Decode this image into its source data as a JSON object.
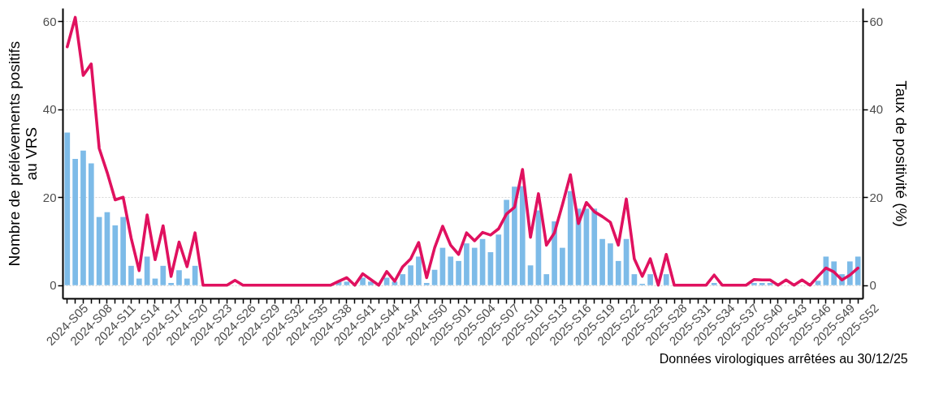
{
  "chart_data": {
    "type": "bar",
    "ylabel": "Nombre de prélévements positifs\nau VRS",
    "y2label": "Taux de positivité (%)",
    "annotations": [
      "Données virologiques arrêtées au 30/12/25"
    ],
    "categories": [
      "2024-S05",
      null,
      null,
      "2024-S08",
      null,
      null,
      "2024-S11",
      null,
      null,
      "2024-S14",
      null,
      null,
      "2024-S17",
      null,
      null,
      "2024-S20",
      null,
      null,
      "2024-S23",
      null,
      null,
      "2024-S26",
      null,
      null,
      "2024-S29",
      null,
      null,
      "2024-S32",
      null,
      null,
      "2024-S35",
      null,
      null,
      "2024-S38",
      null,
      null,
      "2024-S41",
      null,
      null,
      "2024-S44",
      null,
      null,
      "2024-S47",
      null,
      null,
      "2024-S50",
      null,
      null,
      "2025-S01",
      null,
      null,
      "2025-S04",
      null,
      null,
      "2025-S07",
      null,
      null,
      "2025-S10",
      null,
      null,
      "2025-S13",
      null,
      null,
      "2025-S16",
      null,
      null,
      "2025-S19",
      null,
      null,
      "2025-S22",
      null,
      null,
      "2025-S25",
      null,
      null,
      "2025-S28",
      null,
      null,
      "2025-S31",
      null,
      null,
      "2025-S34",
      null,
      null,
      "2025-S37",
      null,
      null,
      "2025-S40",
      null,
      null,
      "2025-S43",
      null,
      null,
      "2025-S46",
      null,
      null,
      "2025-S49",
      null,
      null,
      "2025-S52"
    ],
    "series": [
      {
        "color": "#7dbbe8",
        "values": [
          34.7,
          28.7,
          30.6,
          27.7,
          15.5,
          16.6,
          13.6,
          15.5,
          4.4,
          1.5,
          6.5,
          1.5,
          4.4,
          0.5,
          3.4,
          1.5,
          4.4,
          0,
          0,
          0,
          0,
          0,
          0,
          0,
          0,
          0,
          0,
          0,
          0,
          0,
          0,
          0,
          0,
          0,
          0.8,
          0.8,
          0,
          1.7,
          0.8,
          0,
          1.7,
          0.8,
          2.5,
          4.5,
          6.5,
          0.5,
          3.5,
          8.5,
          6.5,
          5.5,
          9.5,
          8.5,
          10.5,
          7.5,
          11.5,
          19.4,
          22.4,
          22.5,
          4.5,
          17,
          2.5,
          14.5,
          8.5,
          21.4,
          17.4,
          17.4,
          17.4,
          10.5,
          9.5,
          5.5,
          10.5,
          2.5,
          0.3,
          2.5,
          0,
          2.5,
          0,
          0,
          0,
          0,
          0,
          0.5,
          0,
          0,
          0,
          0,
          0.5,
          0.5,
          0.5,
          0,
          0,
          0,
          0,
          0,
          1,
          6.5,
          5.4,
          2.5,
          5.4,
          6.5
        ]
      },
      {
        "type": "line",
        "axis": "y2",
        "color": "#e0115f",
        "values": [
          54.2,
          60.9,
          47.7,
          50.3,
          31.1,
          25.6,
          19.4,
          20,
          10.7,
          3.3,
          16,
          5.8,
          13.5,
          2,
          9.8,
          4.2,
          11.9,
          0,
          0,
          0,
          0,
          1.1,
          0,
          0,
          0,
          0,
          0,
          0,
          0,
          0,
          0,
          0,
          0,
          0,
          0.9,
          1.7,
          0,
          2.6,
          1.3,
          0,
          3.1,
          0.9,
          4.2,
          6,
          9.7,
          1.7,
          8.5,
          13.4,
          9.1,
          7,
          11.9,
          10.1,
          12,
          11.4,
          12.8,
          16.2,
          17.7,
          26.3,
          10.9,
          20.8,
          9.1,
          11.9,
          18.3,
          25.1,
          14,
          18.8,
          16.7,
          15.6,
          14.3,
          9.1,
          19.6,
          6,
          2,
          6,
          0,
          7,
          0,
          0,
          0,
          0,
          0,
          2.3,
          0,
          0,
          0,
          0,
          1.3,
          1.2,
          1.2,
          0,
          1.2,
          0,
          1.2,
          0,
          2,
          3.9,
          3,
          1.2,
          2.3,
          3.9
        ]
      }
    ],
    "ylim": [
      -3,
      63
    ],
    "yticks": [
      0,
      20,
      40,
      60
    ],
    "y2lim": [
      -3,
      63
    ],
    "y2ticks": [
      0,
      20,
      40,
      60
    ],
    "grid": "y",
    "marker": "none",
    "line_style": "solid"
  }
}
